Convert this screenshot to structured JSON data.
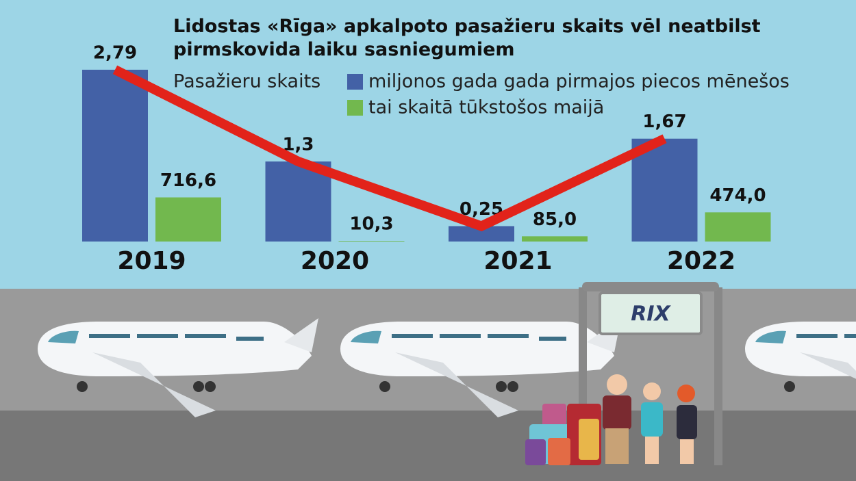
{
  "chart_data": {
    "type": "bar",
    "title": "Lidostas «Rīga» apkalpoto pasažieru skaits vēl neatbilst pirmskovida laiku sasniegumiem",
    "legend_title": "Pasažieru skaits",
    "categories": [
      "2019",
      "2020",
      "2021",
      "2022"
    ],
    "series": [
      {
        "name": "miljonos gada gada pirmajos piecos mēnešos",
        "color": "#4361a6",
        "values": [
          2.79,
          1.3,
          0.25,
          1.67
        ],
        "value_labels": [
          "2,79",
          "1,3",
          "0,25",
          "1,67"
        ]
      },
      {
        "name": "tai skaitā tūkstošos maijā",
        "color": "#72b84e",
        "axis": "y2",
        "values": [
          716.6,
          10.3,
          85.0,
          474.0
        ],
        "value_labels": [
          "716,6",
          "10,3",
          "85,0",
          "474,0"
        ]
      }
    ],
    "trend_color": "#e2231a",
    "ylim": [
      0,
      3
    ],
    "y2lim": [
      0,
      3000
    ]
  },
  "sign_text": "RIX"
}
